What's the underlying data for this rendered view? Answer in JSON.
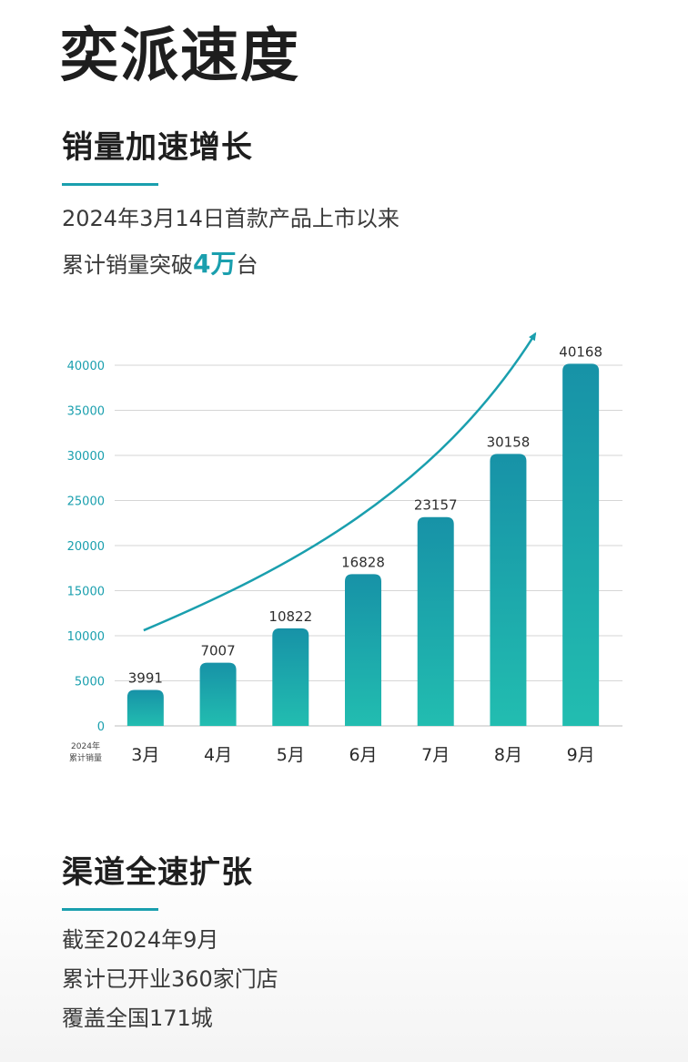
{
  "title": "奕派速度",
  "sales_section": {
    "heading": "销量加速增长",
    "line1": "2024年3月14日首款产品上市以来",
    "line2_prefix": "累计销量突破",
    "line2_highlight": "4万",
    "line2_suffix": "台"
  },
  "chart_data": {
    "type": "bar",
    "categories": [
      "3月",
      "4月",
      "5月",
      "6月",
      "7月",
      "8月",
      "9月"
    ],
    "values": [
      3991,
      7007,
      10822,
      16828,
      23157,
      30158,
      40168
    ],
    "labels": [
      "3991",
      "7007",
      "10822",
      "16828",
      "23157",
      "30158",
      "40168"
    ],
    "yticks": [
      0,
      5000,
      10000,
      15000,
      20000,
      25000,
      30000,
      35000,
      40000
    ],
    "ylim": [
      0,
      40000
    ],
    "axis_note_line1": "2024年",
    "axis_note_line2": "累计销量",
    "trend_arrow": true,
    "bar_color": "#1a9fae"
  },
  "channel_section": {
    "heading": "渠道全速扩张",
    "line1": "截至2024年9月",
    "line2": "累计已开业360家门店",
    "line3": "覆盖全国171城"
  },
  "colors": {
    "accent": "#1a9fae",
    "text": "#222222"
  }
}
